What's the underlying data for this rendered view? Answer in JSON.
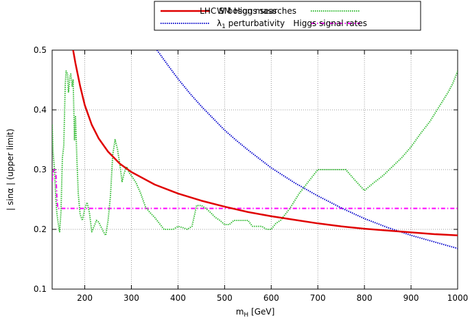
{
  "chart_data": {
    "type": "line",
    "xlabel_main": "m",
    "xlabel_sub": "H",
    "xlabel_unit": " [GeV]",
    "ylabel": "| sinα |  (upper limit)",
    "xlim": [
      130,
      1000
    ],
    "ylim": [
      0.1,
      0.5
    ],
    "x_ticks": [
      200,
      300,
      400,
      500,
      600,
      700,
      800,
      900,
      1000
    ],
    "y_ticks": [
      0.1,
      0.2,
      0.3,
      0.4,
      0.5
    ],
    "x_tick_labels": [
      "200",
      "300",
      "400",
      "500",
      "600",
      "700",
      "800",
      "900",
      "1000"
    ],
    "y_tick_labels": [
      "0.1",
      "0.2",
      "0.3",
      "0.4",
      "0.5"
    ],
    "grid": true,
    "legend_position": "top",
    "series": [
      {
        "name": "W boson mass",
        "color": "#e00000",
        "style": "solid",
        "x": [
          175,
          180,
          190,
          200,
          215,
          230,
          250,
          275,
          300,
          350,
          400,
          450,
          500,
          550,
          600,
          650,
          700,
          750,
          800,
          850,
          900,
          950,
          1000
        ],
        "y": [
          0.5,
          0.478,
          0.44,
          0.408,
          0.375,
          0.352,
          0.33,
          0.31,
          0.296,
          0.275,
          0.26,
          0.248,
          0.238,
          0.229,
          0.222,
          0.216,
          0.21,
          0.205,
          0.201,
          0.198,
          0.195,
          0.192,
          0.19
        ]
      },
      {
        "name": "λ1 perturbativity",
        "name_main": "λ",
        "name_sub": "1",
        "name_rest": " perturbativity",
        "color": "#0000cc",
        "style": "dotted",
        "x": [
          355,
          380,
          400,
          425,
          450,
          475,
          500,
          525,
          550,
          575,
          600,
          650,
          700,
          750,
          800,
          850,
          900,
          950,
          1000
        ],
        "y": [
          0.5,
          0.473,
          0.452,
          0.428,
          0.406,
          0.386,
          0.366,
          0.349,
          0.333,
          0.318,
          0.303,
          0.278,
          0.256,
          0.236,
          0.218,
          0.203,
          0.19,
          0.179,
          0.168
        ]
      },
      {
        "name": "LHC SM Higgs searches",
        "color": "#33bb33",
        "style": "dotted",
        "x": [
          130,
          132,
          135,
          138,
          140,
          143,
          146,
          149,
          152,
          155,
          158,
          160,
          163,
          165,
          168,
          170,
          173,
          175,
          178,
          180,
          183,
          186,
          190,
          195,
          200,
          205,
          210,
          215,
          220,
          225,
          230,
          240,
          245,
          250,
          255,
          260,
          265,
          270,
          275,
          280,
          285,
          290,
          295,
          300,
          310,
          320,
          330,
          340,
          350,
          370,
          390,
          400,
          410,
          420,
          430,
          440,
          450,
          460,
          470,
          480,
          490,
          500,
          510,
          520,
          530,
          540,
          550,
          560,
          580,
          590,
          600,
          610,
          620,
          640,
          660,
          680,
          700,
          720,
          740,
          760,
          780,
          800,
          820,
          840,
          860,
          880,
          900,
          920,
          940,
          960,
          980,
          990,
          1000
        ],
        "y": [
          0.375,
          0.33,
          0.3,
          0.25,
          0.228,
          0.21,
          0.196,
          0.23,
          0.32,
          0.34,
          0.44,
          0.465,
          0.46,
          0.43,
          0.455,
          0.46,
          0.44,
          0.45,
          0.35,
          0.39,
          0.32,
          0.26,
          0.225,
          0.215,
          0.235,
          0.245,
          0.228,
          0.196,
          0.205,
          0.215,
          0.212,
          0.196,
          0.19,
          0.215,
          0.255,
          0.325,
          0.35,
          0.335,
          0.31,
          0.28,
          0.295,
          0.305,
          0.295,
          0.29,
          0.278,
          0.26,
          0.238,
          0.228,
          0.22,
          0.2,
          0.2,
          0.205,
          0.203,
          0.2,
          0.205,
          0.24,
          0.24,
          0.235,
          0.228,
          0.22,
          0.215,
          0.208,
          0.208,
          0.215,
          0.215,
          0.215,
          0.215,
          0.205,
          0.205,
          0.2,
          0.2,
          0.21,
          0.215,
          0.235,
          0.26,
          0.28,
          0.3,
          0.3,
          0.3,
          0.3,
          0.282,
          0.265,
          0.278,
          0.29,
          0.305,
          0.32,
          0.338,
          0.36,
          0.38,
          0.405,
          0.43,
          0.445,
          0.465
        ]
      },
      {
        "name": "Higgs signal rates",
        "color": "#ff00ff",
        "style": "dashdot",
        "x": [
          130,
          132,
          134,
          136,
          138,
          140,
          142,
          145,
          150,
          200,
          300,
          400,
          500,
          600,
          700,
          800,
          900,
          1000
        ],
        "y": [
          0.28,
          0.295,
          0.3,
          0.3,
          0.295,
          0.255,
          0.235,
          0.235,
          0.235,
          0.235,
          0.235,
          0.235,
          0.235,
          0.235,
          0.235,
          0.235,
          0.235,
          0.235
        ]
      }
    ]
  }
}
